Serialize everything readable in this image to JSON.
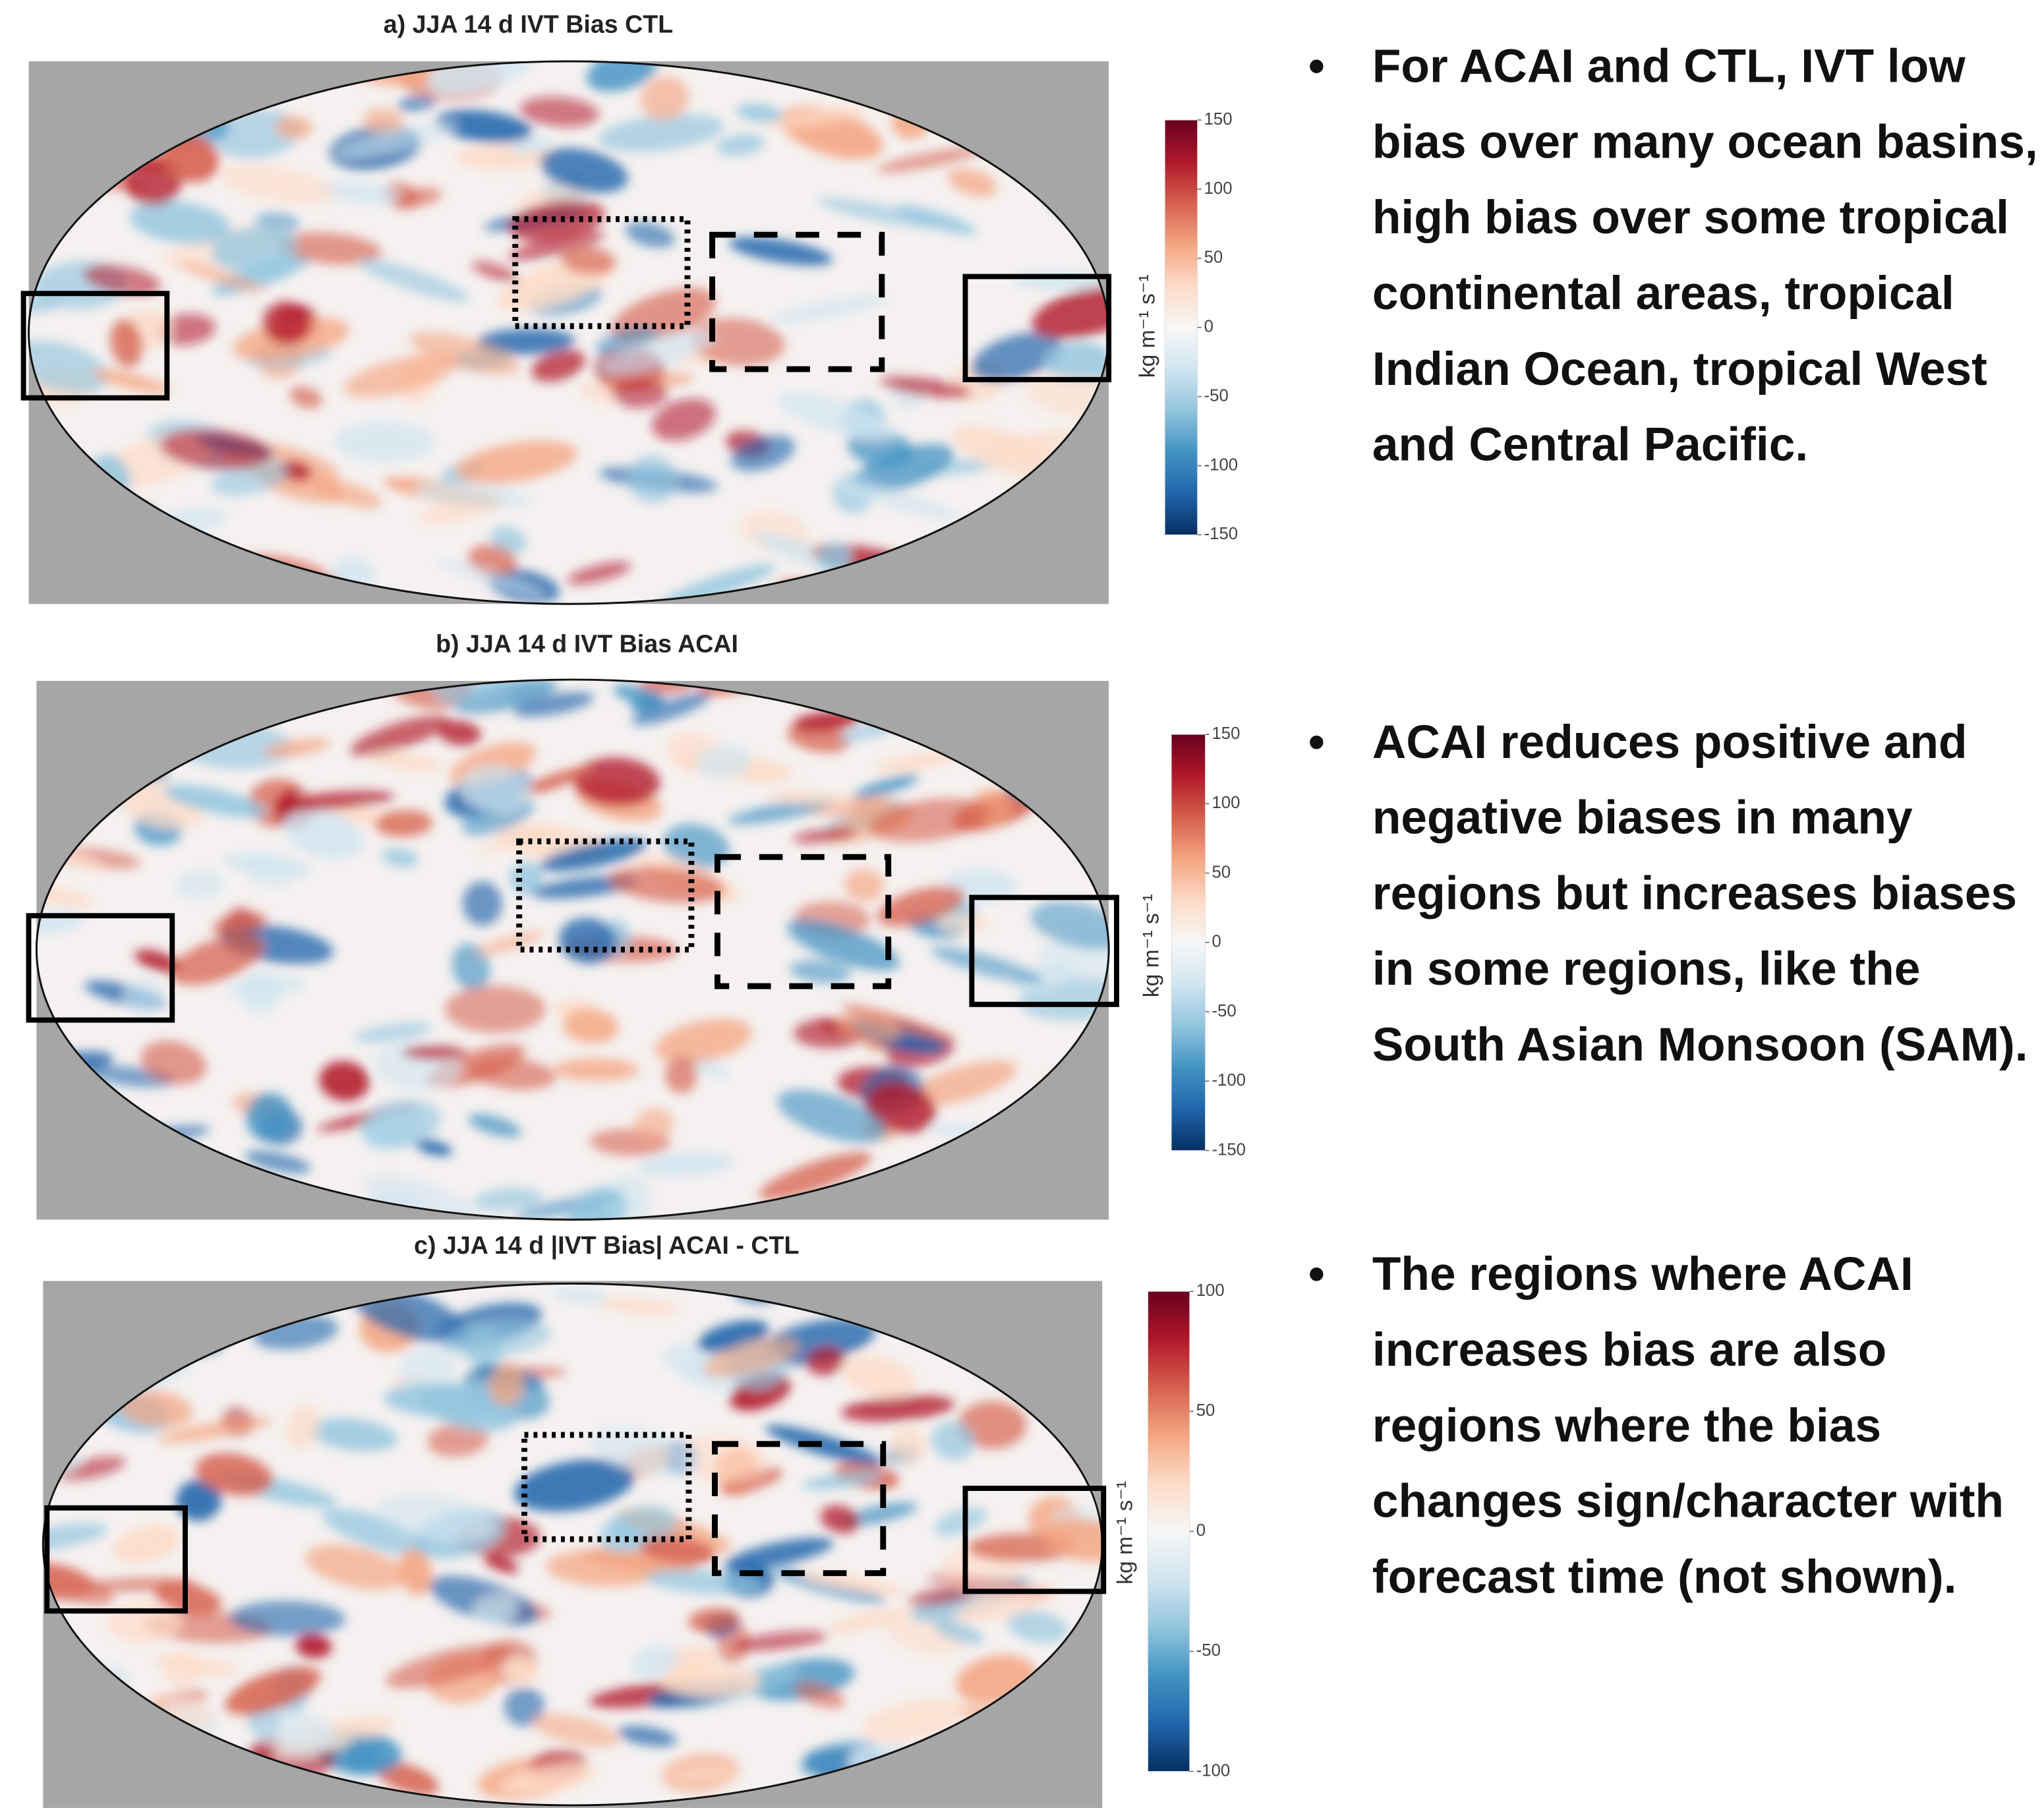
{
  "panels": [
    {
      "title": "a) JJA 14 d IVT Bias CTL",
      "colorbar": {
        "label": "kg m⁻¹ s⁻¹",
        "ticks": [
          150,
          100,
          50,
          0,
          -50,
          -100,
          -150
        ]
      }
    },
    {
      "title": "b) JJA 14 d IVT Bias ACAI",
      "colorbar": {
        "label": "kg m⁻¹ s⁻¹",
        "ticks": [
          150,
          100,
          50,
          0,
          -50,
          -100,
          -150
        ]
      }
    },
    {
      "title": "c) JJA  14 d |IVT Bias|  ACAI - CTL",
      "colorbar": {
        "label": "kg m⁻¹ s⁻¹",
        "ticks": [
          100,
          50,
          0,
          -50,
          -100
        ]
      }
    }
  ],
  "bullets": [
    "For ACAI and CTL,  IVT low bias over many ocean basins, high bias over some tropical continental areas, tropical Indian Ocean, tropical West and Central Pacific.",
    "ACAI reduces positive and negative biases in many regions but increases biases in some regions, like the South Asian Monsoon (SAM).",
    "The regions where ACAI increases bias are also regions where the bias changes sign/character with forecast time (not shown)."
  ]
}
